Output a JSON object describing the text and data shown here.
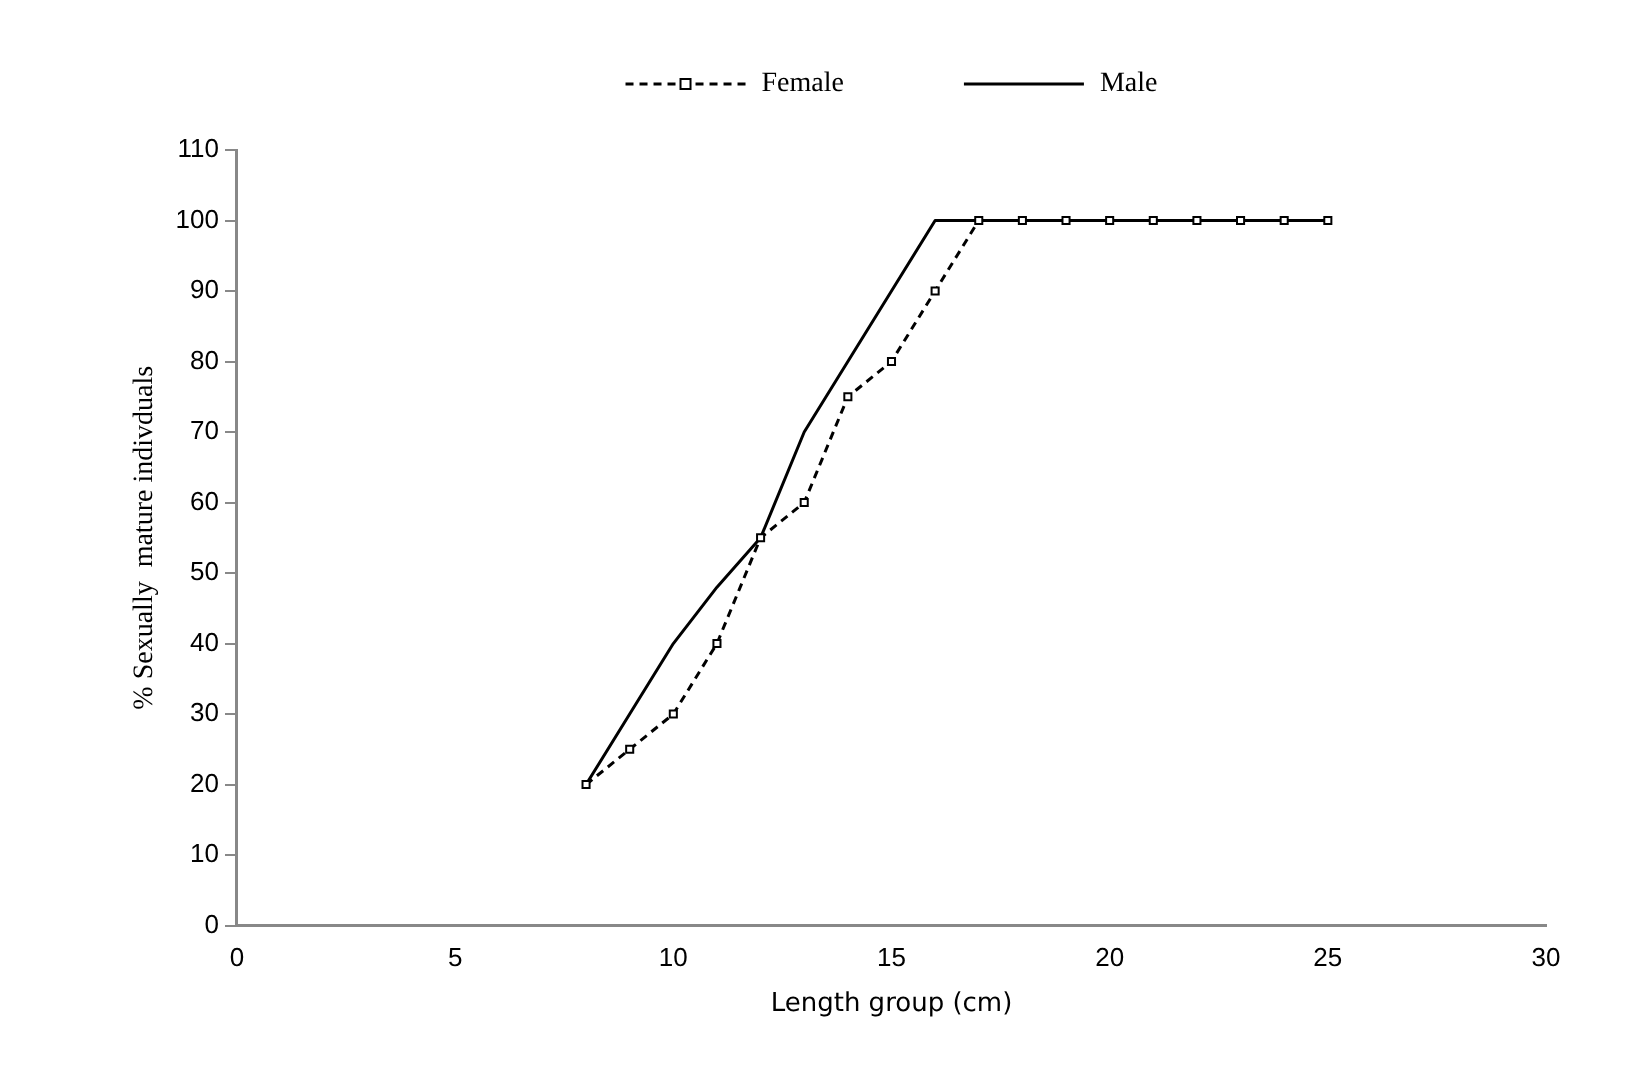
{
  "chart_data": {
    "type": "line",
    "xlabel": "Length group (cm)",
    "ylabel": "% Sexually  mature indivduals",
    "x": [
      8,
      9,
      10,
      11,
      12,
      13,
      14,
      15,
      16,
      17,
      18,
      19,
      20,
      21,
      22,
      23,
      24,
      25
    ],
    "series": [
      {
        "name": "Female",
        "color": "#000000",
        "line_style": "dashed",
        "marker": "square",
        "values": [
          20,
          25,
          30,
          40,
          55,
          60,
          75,
          80,
          90,
          100,
          100,
          100,
          100,
          100,
          100,
          100,
          100,
          100
        ]
      },
      {
        "name": "Male",
        "color": "#000000",
        "line_style": "solid",
        "marker": "none",
        "values": [
          20,
          30,
          40,
          48,
          55,
          70,
          80,
          90,
          100,
          100,
          100,
          100,
          100,
          100,
          100,
          100,
          100,
          100
        ]
      }
    ],
    "xlim": [
      0,
      30
    ],
    "xticks": [
      0,
      5,
      10,
      15,
      20,
      25,
      30
    ],
    "ylim": [
      0,
      110
    ],
    "yticks": [
      0,
      10,
      20,
      30,
      40,
      50,
      60,
      70,
      80,
      90,
      100,
      110
    ],
    "grid": false,
    "legend": "top"
  }
}
